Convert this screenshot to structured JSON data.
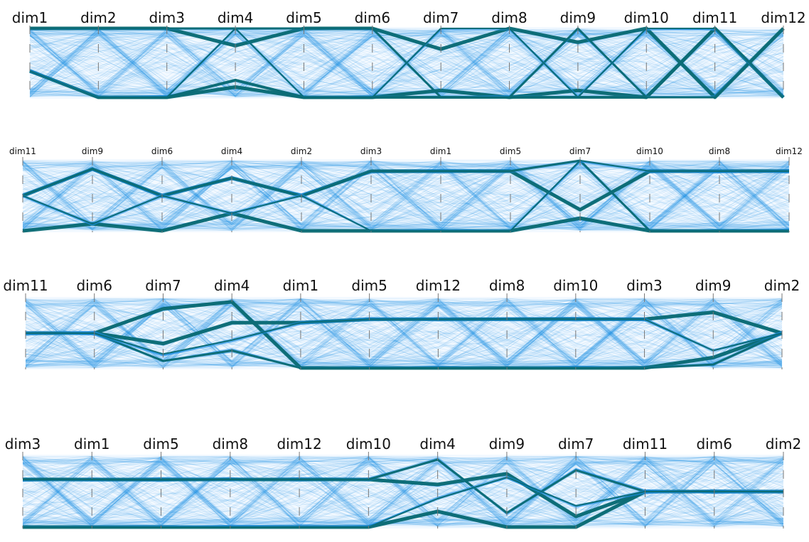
{
  "chart_data": [
    {
      "type": "parallel_coordinates",
      "dimensions": [
        "dim1",
        "dim2",
        "dim3",
        "dim4",
        "dim5",
        "dim6",
        "dim7",
        "dim8",
        "dim9",
        "dim10",
        "dim11",
        "dim12"
      ],
      "value_range": [
        0,
        1
      ],
      "background_color": "#1e90e6",
      "cluster_color": "#0b6a72",
      "bundles": [
        {
          "values": [
            0.38,
            0.0,
            0.0,
            0.15,
            0.0,
            0.0,
            0.1,
            0.0,
            0.1,
            0.0,
            1.0,
            0.0
          ],
          "weight": 5
        },
        {
          "values": [
            0.38,
            0.0,
            0.0,
            0.25,
            0.0,
            0.0,
            0.0,
            0.0,
            0.0,
            0.0,
            1.0,
            0.0
          ],
          "weight": 4
        },
        {
          "values": [
            1.0,
            1.0,
            1.0,
            0.75,
            1.0,
            1.0,
            0.7,
            1.0,
            0.8,
            1.0,
            0.0,
            1.0
          ],
          "weight": 5
        },
        {
          "values": [
            1.0,
            1.0,
            1.0,
            1.0,
            1.0,
            1.0,
            0.0,
            0.0,
            1.0,
            0.0,
            0.0,
            1.0
          ],
          "weight": 3
        },
        {
          "values": [
            0.38,
            0.0,
            0.0,
            1.0,
            0.0,
            0.0,
            1.0,
            1.0,
            0.0,
            1.0,
            1.0,
            0.0
          ],
          "weight": 2
        }
      ]
    },
    {
      "type": "parallel_coordinates",
      "dimensions": [
        "dim11",
        "dim9",
        "dim6",
        "dim4",
        "dim2",
        "dim3",
        "dim1",
        "dim5",
        "dim7",
        "dim10",
        "dim8",
        "dim12"
      ],
      "value_range": [
        0,
        1
      ],
      "background_color": "#1e90e6",
      "cluster_color": "#0b6a72",
      "bundles": [
        {
          "values": [
            0.0,
            0.1,
            0.0,
            0.25,
            0.0,
            0.0,
            0.0,
            0.0,
            0.18,
            0.0,
            0.0,
            0.0
          ],
          "weight": 5
        },
        {
          "values": [
            0.5,
            0.88,
            0.5,
            0.75,
            0.5,
            0.85,
            0.85,
            0.85,
            0.3,
            0.85,
            0.85,
            0.85
          ],
          "weight": 5
        },
        {
          "values": [
            0.5,
            0.88,
            0.5,
            0.75,
            0.5,
            0.85,
            0.85,
            0.85,
            1.0,
            0.0,
            0.0,
            0.0
          ],
          "weight": 3
        },
        {
          "values": [
            0.5,
            0.1,
            0.5,
            0.25,
            0.5,
            0.0,
            0.0,
            0.0,
            1.0,
            0.85,
            0.85,
            0.85
          ],
          "weight": 2
        }
      ]
    },
    {
      "type": "parallel_coordinates",
      "dimensions": [
        "dim11",
        "dim6",
        "dim7",
        "dim4",
        "dim1",
        "dim5",
        "dim12",
        "dim8",
        "dim10",
        "dim3",
        "dim9",
        "dim2"
      ],
      "value_range": [
        0,
        1
      ],
      "background_color": "#1e90e6",
      "cluster_color": "#0b6a72",
      "bundles": [
        {
          "values": [
            0.5,
            0.5,
            0.35,
            0.65,
            0.65,
            0.7,
            0.7,
            0.7,
            0.7,
            0.7,
            0.8,
            0.5
          ],
          "weight": 5
        },
        {
          "values": [
            0.5,
            0.5,
            0.85,
            0.95,
            0.0,
            0.0,
            0.0,
            0.0,
            0.0,
            0.0,
            0.15,
            0.5
          ],
          "weight": 5
        },
        {
          "values": [
            0.5,
            0.5,
            0.1,
            0.25,
            0.0,
            0.0,
            0.0,
            0.0,
            0.0,
            0.0,
            0.05,
            0.5
          ],
          "weight": 3
        },
        {
          "values": [
            0.5,
            0.5,
            0.2,
            0.4,
            0.65,
            0.7,
            0.7,
            0.7,
            0.7,
            0.7,
            0.25,
            0.5
          ],
          "weight": 2
        }
      ]
    },
    {
      "type": "parallel_coordinates",
      "dimensions": [
        "dim3",
        "dim1",
        "dim5",
        "dim8",
        "dim12",
        "dim10",
        "dim4",
        "dim9",
        "dim7",
        "dim11",
        "dim6",
        "dim2"
      ],
      "value_range": [
        0,
        1
      ],
      "background_color": "#1e90e6",
      "cluster_color": "#0b6a72",
      "bundles": [
        {
          "values": [
            0.67,
            0.67,
            0.67,
            0.67,
            0.67,
            0.67,
            0.6,
            0.75,
            0.15,
            0.5,
            0.5,
            0.5
          ],
          "weight": 5
        },
        {
          "values": [
            0.0,
            0.0,
            0.0,
            0.0,
            0.0,
            0.0,
            0.22,
            0.0,
            0.0,
            0.5,
            0.5,
            0.5
          ],
          "weight": 5
        },
        {
          "values": [
            0.67,
            0.67,
            0.67,
            0.67,
            0.67,
            0.67,
            0.95,
            0.2,
            0.8,
            0.5,
            0.5,
            0.5
          ],
          "weight": 3
        },
        {
          "values": [
            0.0,
            0.0,
            0.0,
            0.0,
            0.0,
            0.0,
            0.4,
            0.7,
            0.3,
            0.5,
            0.5,
            0.5
          ],
          "weight": 2
        }
      ]
    }
  ]
}
